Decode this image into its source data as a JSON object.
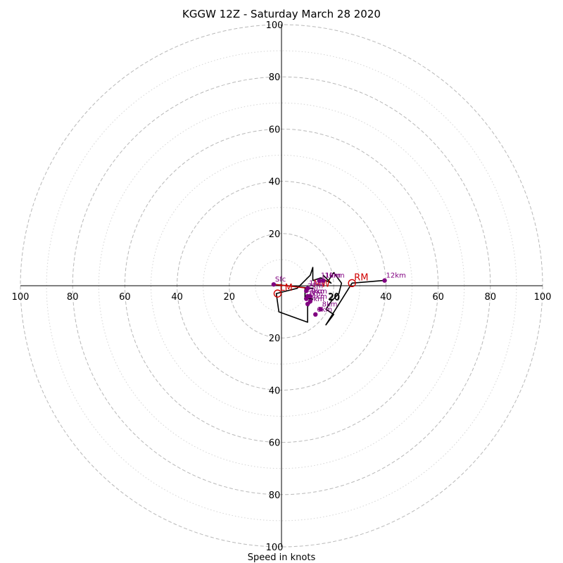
{
  "chart_data": {
    "type": "hodograph",
    "title": "KGGW 12Z - Saturday March 28 2020",
    "xlabel": "Speed in knots",
    "range_knots": [
      0,
      100
    ],
    "ring_major_knots": [
      20,
      40,
      60,
      80,
      100
    ],
    "ring_minor_knots": [
      10,
      30,
      50,
      70,
      90
    ],
    "tick_labels": [
      "20",
      "40",
      "60",
      "80",
      "100"
    ],
    "inner_ring_label": "20",
    "grid": true,
    "hodograph_trace_uv": [
      [
        -3,
        0.5
      ],
      [
        12,
        -1
      ],
      [
        9,
        -1
      ],
      [
        9,
        -5
      ],
      [
        12,
        -5
      ],
      [
        10,
        -8
      ],
      [
        10,
        -14
      ],
      [
        -1,
        -10
      ],
      [
        -2,
        -3
      ],
      [
        6,
        -1
      ],
      [
        11,
        4
      ],
      [
        12,
        7
      ],
      [
        12,
        2
      ],
      [
        15,
        3
      ],
      [
        19,
        1
      ],
      [
        16,
        4
      ],
      [
        18,
        2
      ],
      [
        20,
        5
      ],
      [
        23,
        1
      ],
      [
        22,
        -3
      ],
      [
        19,
        -6
      ],
      [
        17,
        -9
      ],
      [
        20,
        -11
      ],
      [
        17,
        -15
      ],
      [
        27,
        1
      ],
      [
        39,
        2
      ]
    ],
    "height_points": [
      {
        "label": "Sfc",
        "u": -3,
        "v": 0.5
      },
      {
        "label": "1km",
        "u": 10,
        "v": -1
      },
      {
        "label": "2km",
        "u": 9.5,
        "v": -2
      },
      {
        "label": "3km",
        "u": 10,
        "v": -4
      },
      {
        "label": "4km",
        "u": 11,
        "v": -6
      },
      {
        "label": "5km",
        "u": 10,
        "v": -7
      },
      {
        "label": "6km",
        "u": 13,
        "v": -11
      },
      {
        "label": "7km",
        "u": 9.5,
        "v": -5
      },
      {
        "label": "8km",
        "u": 15,
        "v": -9
      },
      {
        "label": "9km",
        "u": 11,
        "v": -4
      },
      {
        "label": "10km",
        "u": 16,
        "v": 2
      },
      {
        "label": "11km",
        "u": 14.5,
        "v": 2
      },
      {
        "label": "12km",
        "u": 39.5,
        "v": 2
      }
    ],
    "storm_motion": {
      "rm": {
        "label": "RM",
        "u": 27,
        "v": 1
      },
      "lm": {
        "label": "LM",
        "u": -1.5,
        "v": -3
      },
      "mean_wind": {
        "label": "MW",
        "u": 10.5,
        "v": -1
      }
    },
    "colors": {
      "trace": "#000000",
      "height_points": "#800080",
      "storm_motion": "#d00000",
      "grid": "#b8b8b8"
    }
  }
}
